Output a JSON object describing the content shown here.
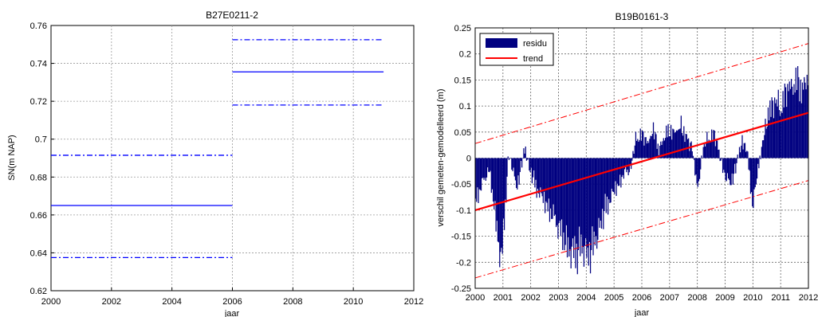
{
  "chart_data": [
    {
      "type": "line",
      "title": "B27E0211-2",
      "xlabel": "jaar",
      "ylabel": "SN(m NAP)",
      "xlim": [
        2000,
        2012
      ],
      "ylim": [
        0.62,
        0.76
      ],
      "xticks": [
        2000,
        2002,
        2004,
        2006,
        2008,
        2010,
        2012
      ],
      "xtick_labels": [
        "2000",
        "2002",
        "2004",
        "2006",
        "2008",
        "2010",
        "2012"
      ],
      "yticks": [
        0.62,
        0.64,
        0.66,
        0.68,
        0.7,
        0.72,
        0.74,
        0.76
      ],
      "ytick_labels": [
        "0.62",
        "0.64",
        "0.66",
        "0.68",
        "0.7",
        "0.72",
        "0.74",
        "0.76"
      ],
      "grid": true,
      "series": [
        {
          "style": "solid",
          "color": "#0000ff",
          "segments": [
            {
              "x": [
                2000,
                2006
              ],
              "y": [
                0.665,
                0.665
              ]
            },
            {
              "x": [
                2006,
                2011
              ],
              "y": [
                0.7355,
                0.7355
              ]
            }
          ]
        },
        {
          "style": "dashdot",
          "color": "#0000ff",
          "segments": [
            {
              "x": [
                2000,
                2006
              ],
              "y": [
                0.6915,
                0.6915
              ]
            },
            {
              "x": [
                2006,
                2011
              ],
              "y": [
                0.7525,
                0.7525
              ]
            }
          ]
        },
        {
          "style": "dashdot",
          "color": "#0000ff",
          "segments": [
            {
              "x": [
                2000,
                2006
              ],
              "y": [
                0.6375,
                0.6375
              ]
            },
            {
              "x": [
                2006,
                2011
              ],
              "y": [
                0.718,
                0.718
              ]
            }
          ]
        }
      ]
    },
    {
      "type": "bar",
      "title": "B19B0161-3",
      "xlabel": "jaar",
      "ylabel": "verschil gemeten-gemodelleerd (m)",
      "xlim": [
        2000,
        2012
      ],
      "ylim": [
        -0.25,
        0.25
      ],
      "xticks": [
        2000,
        2001,
        2002,
        2003,
        2004,
        2005,
        2006,
        2007,
        2008,
        2009,
        2010,
        2011,
        2012
      ],
      "xtick_labels": [
        "2000",
        "2001",
        "2002",
        "2003",
        "2004",
        "2005",
        "2006",
        "2007",
        "2008",
        "2009",
        "2010",
        "2011",
        "2012"
      ],
      "yticks": [
        -0.25,
        -0.2,
        -0.15,
        -0.1,
        -0.05,
        0,
        0.05,
        0.1,
        0.15,
        0.2,
        0.25
      ],
      "ytick_labels": [
        "-0.25",
        "-0.2",
        "-0.15",
        "-0.1",
        "-0.05",
        "0",
        "0.05",
        "0.1",
        "0.15",
        "0.2",
        "0.25"
      ],
      "grid": true,
      "legend": {
        "position": "top-left",
        "entries": [
          "residu",
          "trend"
        ]
      },
      "residu": {
        "name": "residu",
        "color": "#000080",
        "x": [
          2000.0,
          2000.5,
          2000.95,
          2001.2,
          2001.5,
          2001.8,
          2002.0,
          2002.2,
          2002.4,
          2002.6,
          2002.8,
          2003.0,
          2003.2,
          2003.4,
          2003.6,
          2003.8,
          2004.0,
          2004.2,
          2004.4,
          2004.6,
          2004.8,
          2005.0,
          2005.2,
          2005.4,
          2005.6,
          2005.8,
          2006.0,
          2006.2,
          2006.4,
          2006.6,
          2006.8,
          2007.0,
          2007.2,
          2007.4,
          2007.6,
          2007.8,
          2008.0,
          2008.2,
          2008.4,
          2008.6,
          2008.8,
          2009.0,
          2009.2,
          2009.4,
          2009.6,
          2009.8,
          2010.0,
          2010.3,
          2010.6,
          2010.8,
          2011.0,
          2011.2,
          2011.4,
          2011.6,
          2011.8,
          2011.95
        ],
        "values": [
          -0.09,
          -0.02,
          -0.22,
          0.01,
          -0.06,
          0.02,
          -0.03,
          -0.06,
          -0.08,
          -0.1,
          -0.12,
          -0.14,
          -0.17,
          -0.19,
          -0.2,
          -0.18,
          -0.2,
          -0.19,
          -0.16,
          -0.12,
          -0.09,
          -0.07,
          -0.05,
          -0.03,
          -0.02,
          0.04,
          0.05,
          0.03,
          0.06,
          0.02,
          0.04,
          0.06,
          0.05,
          0.07,
          0.04,
          0.03,
          -0.07,
          0.02,
          0.04,
          0.05,
          0.01,
          -0.04,
          -0.05,
          -0.02,
          0.04,
          0.01,
          -0.1,
          0.02,
          0.1,
          0.12,
          0.1,
          0.14,
          0.15,
          0.16,
          0.14,
          0.17
        ]
      },
      "trend": {
        "name": "trend",
        "color": "#ff0000",
        "x": [
          2000,
          2012
        ],
        "y": [
          -0.1,
          0.087
        ]
      },
      "trend_bounds": {
        "color": "#ff0000",
        "style": "dashdot",
        "upper": {
          "x": [
            2000,
            2012
          ],
          "y": [
            0.028,
            0.22
          ]
        },
        "lower": {
          "x": [
            2000,
            2012
          ],
          "y": [
            -0.23,
            -0.043
          ]
        }
      }
    }
  ]
}
